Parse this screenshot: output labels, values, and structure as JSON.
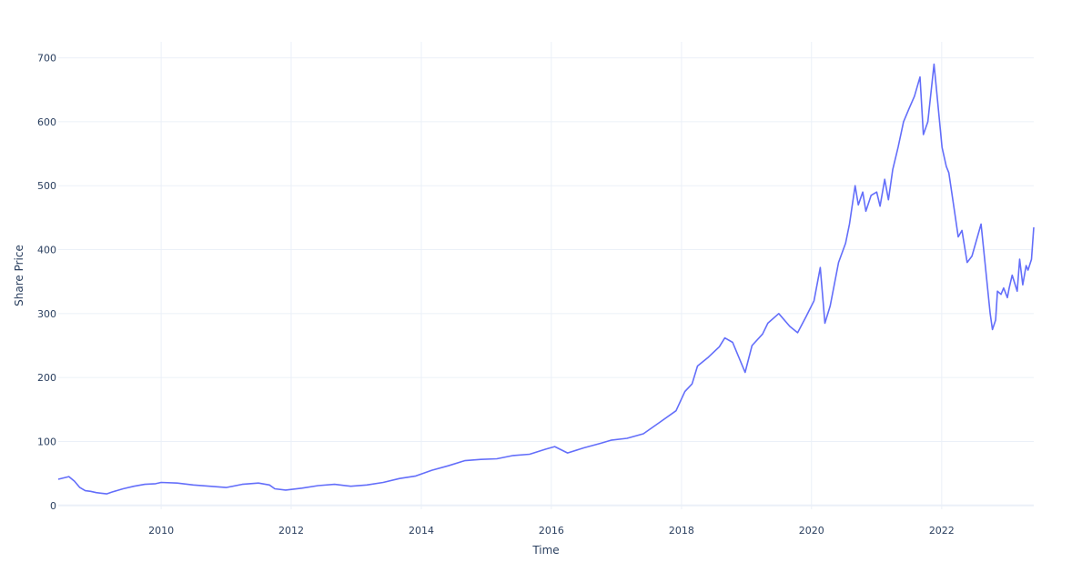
{
  "chart_data": {
    "type": "line",
    "title": "",
    "xlabel": "Time",
    "ylabel": "Share Price",
    "x_range": [
      "2008-06-02",
      "2023-06-02"
    ],
    "ylim": [
      -6,
      725
    ],
    "x_ticks": [
      "2010-01-01",
      "2012-01-01",
      "2014-01-01",
      "2016-01-01",
      "2018-01-01",
      "2020-01-01",
      "2022-01-01"
    ],
    "x_tick_labels": [
      "2010",
      "2012",
      "2014",
      "2016",
      "2018",
      "2020",
      "2022"
    ],
    "y_ticks": [
      0,
      100,
      200,
      300,
      400,
      500,
      600,
      700
    ],
    "y_tick_labels": [
      "0",
      "100",
      "200",
      "300",
      "400",
      "500",
      "600",
      "700"
    ],
    "grid": true,
    "line_color": "#636efa",
    "series": [
      {
        "x": [
          "2008-06-02",
          "2008-08-01",
          "2008-09-01",
          "2008-10-01",
          "2008-11-01",
          "2008-12-01",
          "2009-01-01",
          "2009-02-01",
          "2009-03-01",
          "2009-04-01",
          "2009-06-01",
          "2009-08-01",
          "2009-10-01",
          "2009-12-01",
          "2010-01-01",
          "2010-04-01",
          "2010-07-01",
          "2010-10-01",
          "2011-01-01",
          "2011-04-01",
          "2011-07-01",
          "2011-09-01",
          "2011-10-01",
          "2011-12-01",
          "2012-03-01",
          "2012-06-01",
          "2012-09-01",
          "2012-12-01",
          "2013-03-01",
          "2013-06-01",
          "2013-09-01",
          "2013-12-01",
          "2014-03-01",
          "2014-06-01",
          "2014-09-01",
          "2014-12-01",
          "2015-03-01",
          "2015-06-01",
          "2015-09-01",
          "2015-12-01",
          "2016-01-20",
          "2016-04-01",
          "2016-07-01",
          "2016-10-01",
          "2016-12-01",
          "2017-03-01",
          "2017-06-01",
          "2017-09-01",
          "2017-12-01",
          "2018-01-20",
          "2018-03-01",
          "2018-04-01",
          "2018-06-01",
          "2018-08-01",
          "2018-09-01",
          "2018-10-15",
          "2018-12-24",
          "2019-02-01",
          "2019-04-01",
          "2019-05-01",
          "2019-07-01",
          "2019-09-01",
          "2019-10-15",
          "2019-12-01",
          "2020-01-15",
          "2020-02-19",
          "2020-03-16",
          "2020-04-15",
          "2020-06-01",
          "2020-07-10",
          "2020-08-01",
          "2020-09-02",
          "2020-09-20",
          "2020-10-15",
          "2020-11-01",
          "2020-12-01",
          "2021-01-01",
          "2021-01-20",
          "2021-02-15",
          "2021-03-08",
          "2021-04-01",
          "2021-05-01",
          "2021-06-01",
          "2021-07-01",
          "2021-08-01",
          "2021-09-01",
          "2021-09-20",
          "2021-10-15",
          "2021-11-19",
          "2021-12-01",
          "2022-01-03",
          "2022-01-27",
          "2022-02-10",
          "2022-03-14",
          "2022-04-04",
          "2022-04-25",
          "2022-05-24",
          "2022-06-20",
          "2022-08-10",
          "2022-09-01",
          "2022-09-30",
          "2022-10-13",
          "2022-10-31",
          "2022-11-10",
          "2022-11-30",
          "2022-12-15",
          "2023-01-05",
          "2023-01-15",
          "2023-02-01",
          "2023-03-01",
          "2023-03-15",
          "2023-04-01",
          "2023-04-20",
          "2023-05-01",
          "2023-05-20",
          "2023-06-02"
        ],
        "values": [
          41,
          45,
          38,
          28,
          23,
          22,
          20,
          19,
          18,
          21,
          26,
          30,
          33,
          34,
          36,
          35,
          32,
          30,
          28,
          33,
          35,
          32,
          26,
          24,
          27,
          31,
          33,
          30,
          32,
          36,
          42,
          46,
          55,
          62,
          70,
          72,
          73,
          78,
          80,
          88,
          92,
          82,
          90,
          97,
          102,
          105,
          112,
          130,
          148,
          178,
          190,
          218,
          232,
          248,
          262,
          255,
          208,
          250,
          268,
          285,
          300,
          280,
          270,
          295,
          320,
          372,
          285,
          312,
          380,
          410,
          440,
          500,
          470,
          490,
          460,
          485,
          490,
          468,
          510,
          478,
          525,
          560,
          600,
          620,
          640,
          670,
          580,
          600,
          690,
          655,
          560,
          530,
          520,
          460,
          420,
          430,
          380,
          390,
          440,
          380,
          300,
          275,
          290,
          335,
          330,
          340,
          325,
          340,
          360,
          335,
          385,
          345,
          375,
          368,
          385,
          435
        ]
      }
    ]
  }
}
